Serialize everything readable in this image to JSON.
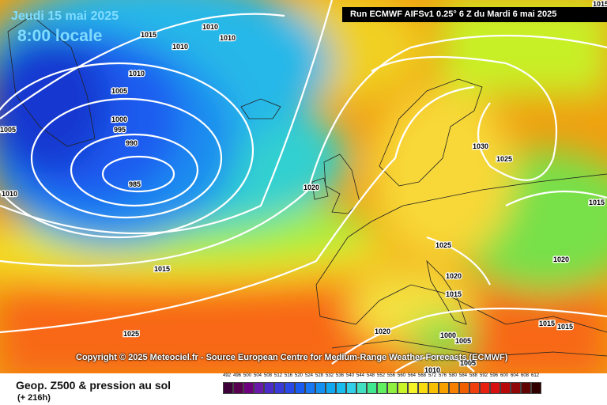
{
  "header": {
    "date": "Jeudi 15 mai 2025",
    "local_time": "8:00 locale",
    "run_info": "Run ECMWF AIFSv1 0.25° 6 Z du Mardi 6 mai 2025"
  },
  "copyright": "Copyright © 2025 Meteociel.fr - Source European Centre for Medium-Range Weather Forecasts (ECMWF)",
  "footer": {
    "title": "Geop. Z500 & pression au sol",
    "forecast_hour": "(+ 216h)"
  },
  "isobar_labels": [
    "1015",
    "1010",
    "1010",
    "1010",
    "1010",
    "1005",
    "1000",
    "995",
    "990",
    "985",
    "1005",
    "1010",
    "1020",
    "1030",
    "1025",
    "1025",
    "1020",
    "1015",
    "1015",
    "1020",
    "1000",
    "1005",
    "1005",
    "1010",
    "1015",
    "1015",
    "1025",
    "1015",
    "1020",
    "1015"
  ],
  "legend": {
    "values": [
      492,
      496,
      500,
      504,
      508,
      512,
      516,
      520,
      524,
      528,
      532,
      536,
      540,
      544,
      548,
      552,
      556,
      560,
      564,
      568,
      572,
      576,
      580,
      584,
      588,
      592,
      596,
      600,
      604,
      608,
      612
    ],
    "colors": [
      "#3d0039",
      "#5a0050",
      "#6e0080",
      "#6a1aa8",
      "#4c2cc8",
      "#3a3ad8",
      "#2a4ae8",
      "#1a5cf0",
      "#1878f4",
      "#1490f2",
      "#10a8ee",
      "#18bcee",
      "#30d0e8",
      "#40e0c0",
      "#40e890",
      "#60f060",
      "#90f040",
      "#c8f428",
      "#f4f428",
      "#f8dc10",
      "#f8c000",
      "#f8a000",
      "#f88000",
      "#f06000",
      "#f04010",
      "#e82010",
      "#d81010",
      "#b80808",
      "#900808",
      "#600404",
      "#300000"
    ]
  }
}
